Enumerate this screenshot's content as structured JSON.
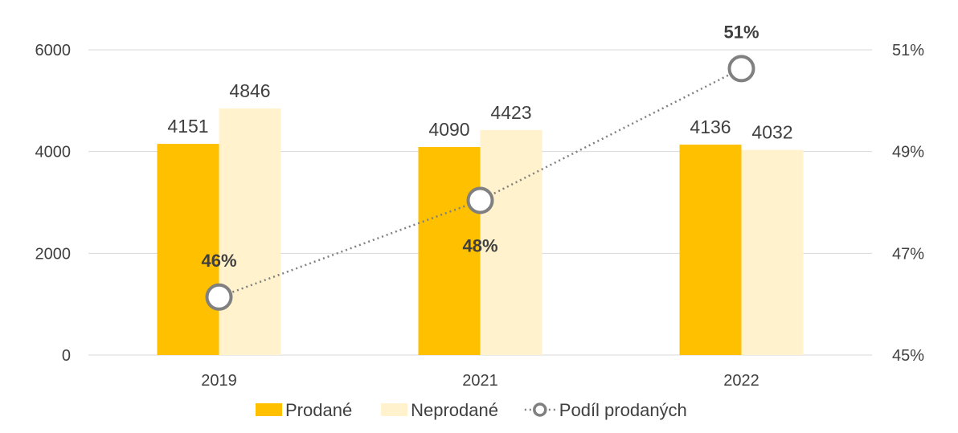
{
  "chart_data": {
    "type": "bar",
    "categories": [
      "2019",
      "2021",
      "2022"
    ],
    "series": [
      {
        "name": "Prodané",
        "kind": "bar",
        "axis": "left",
        "color": "#FFC000",
        "values": [
          4151,
          4090,
          4136
        ],
        "labels": [
          "4151",
          "4090",
          "4136"
        ]
      },
      {
        "name": "Neprodané",
        "kind": "bar",
        "axis": "left",
        "color": "#FFF2CC",
        "values": [
          4846,
          4423,
          4032
        ],
        "labels": [
          "4846",
          "4423",
          "4032"
        ]
      },
      {
        "name": "Podíl prodaných",
        "kind": "line",
        "axis": "right",
        "color": "#808080",
        "line_style": "dotted",
        "values": [
          0.4614,
          0.4804,
          0.5063
        ],
        "labels": [
          "46%",
          "48%",
          "51%"
        ]
      }
    ],
    "y_left": {
      "ticks": [
        "0",
        "2000",
        "4000",
        "6000"
      ],
      "ylim": [
        0,
        6000
      ]
    },
    "y_right": {
      "ticks": [
        "45%",
        "47%",
        "49%",
        "51%"
      ],
      "ylim": [
        0.45,
        0.51
      ],
      "tick_values": [
        0.45,
        0.47,
        0.49,
        0.51
      ]
    },
    "grid": true,
    "legend_position": "bottom"
  }
}
